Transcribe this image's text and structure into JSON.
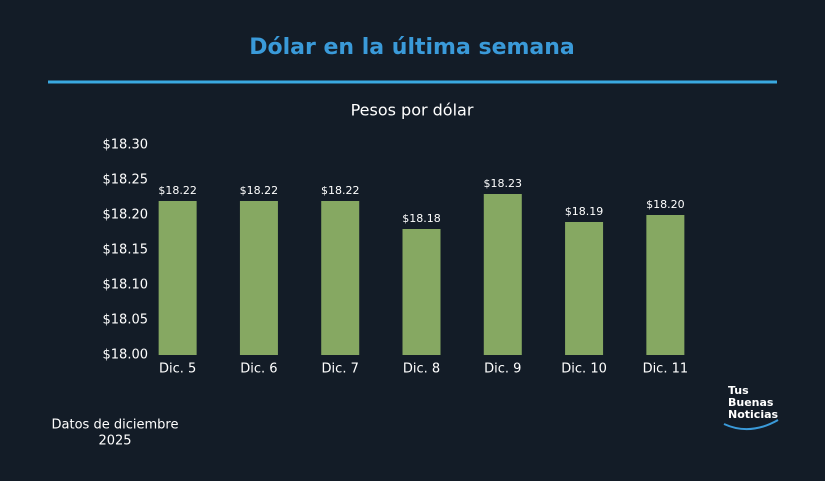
{
  "chart_data": {
    "type": "bar",
    "title": "Dólar en la última semana",
    "subtitle": "Pesos por dólar",
    "categories": [
      "Dic. 5",
      "Dic. 6",
      "Dic. 7",
      "Dic. 8",
      "Dic. 9",
      "Dic. 10",
      "Dic. 11"
    ],
    "values": [
      18.22,
      18.22,
      18.22,
      18.18,
      18.23,
      18.19,
      18.2
    ],
    "value_labels": [
      "$18.22",
      "$18.22",
      "$18.22",
      "$18.18",
      "$18.23",
      "$18.19",
      "$18.20"
    ],
    "color": "#86a862",
    "ylim": [
      18.0,
      18.3
    ],
    "yticks": [
      {
        "value": 18.0,
        "label": "$18.00"
      },
      {
        "value": 18.05,
        "label": "$18.05"
      },
      {
        "value": 18.1,
        "label": "$18.10"
      },
      {
        "value": 18.15,
        "label": "$18.15"
      },
      {
        "value": 18.2,
        "label": "$18.20"
      },
      {
        "value": 18.25,
        "label": "$18.25"
      },
      {
        "value": 18.3,
        "label": "$18.30"
      }
    ],
    "grid": false,
    "footnote": [
      "Datos de diciembre",
      "2025"
    ],
    "logo": [
      "Tus",
      "Buenas",
      "Noticias"
    ]
  }
}
